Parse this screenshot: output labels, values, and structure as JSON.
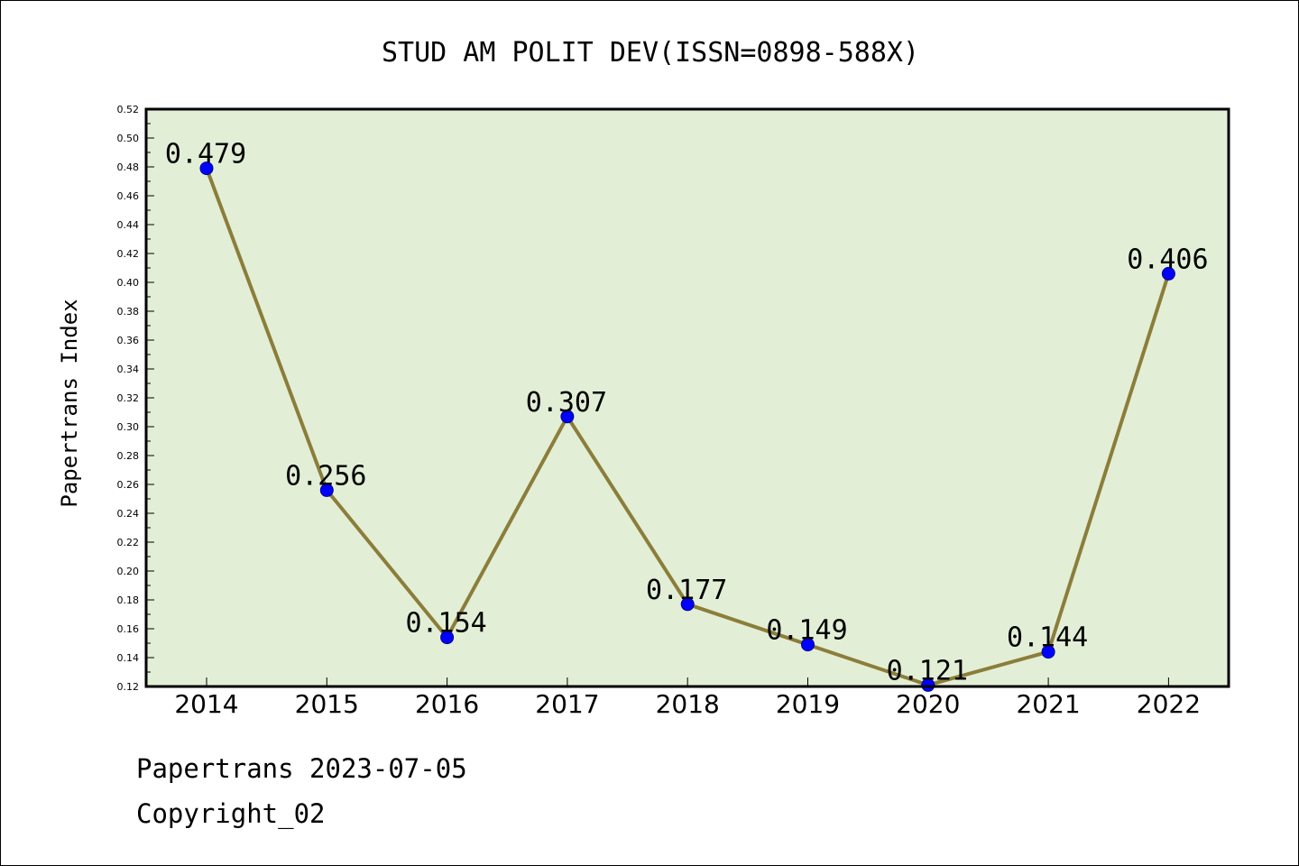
{
  "chart_data": {
    "type": "line",
    "title": "STUD AM POLIT DEV(ISSN=0898-588X)",
    "xlabel": "",
    "ylabel": "Papertrans Index",
    "categories": [
      "2014",
      "2015",
      "2016",
      "2017",
      "2018",
      "2019",
      "2020",
      "2021",
      "2022"
    ],
    "series": [
      {
        "values": [
          0.479,
          0.256,
          0.154,
          0.307,
          0.177,
          0.149,
          0.121,
          0.144,
          0.406
        ],
        "labels": [
          "0.479",
          "0.256",
          "0.154",
          "0.307",
          "0.177",
          "0.149",
          "0.121",
          "0.144",
          "0.406"
        ]
      }
    ],
    "ylim": [
      0.12,
      0.52
    ],
    "yticks": [
      "0.12",
      "0.14",
      "0.16",
      "0.18",
      "0.20",
      "0.22",
      "0.24",
      "0.26",
      "0.28",
      "0.30",
      "0.32",
      "0.34",
      "0.36",
      "0.38",
      "0.40",
      "0.42",
      "0.44",
      "0.46",
      "0.48",
      "0.50",
      "0.52"
    ],
    "grid": false,
    "legend": "none"
  },
  "colors": {
    "plot_background": "#e2efd6",
    "line": "#8b7d3a",
    "marker_fill": "#0000ff",
    "marker_edge": "#00008b",
    "axes": "#000000"
  },
  "footer": {
    "line1": "Papertrans 2023-07-05",
    "line2": "Copyright_02"
  }
}
